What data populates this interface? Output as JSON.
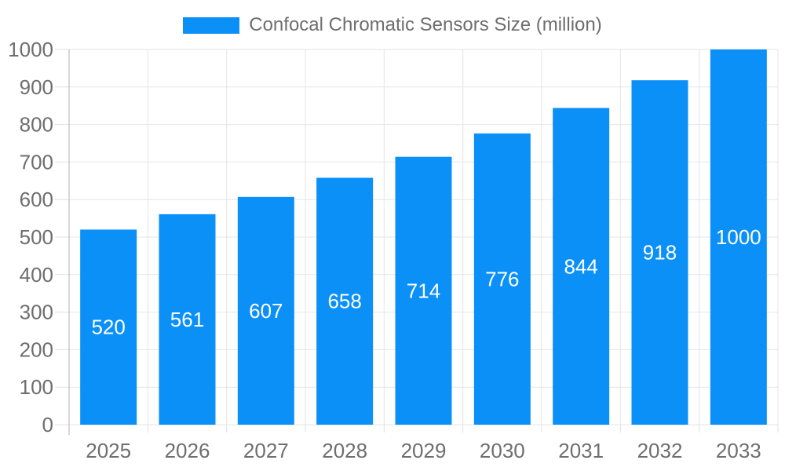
{
  "colors": {
    "bar": "#0b90f8",
    "text": "#6e6e6e",
    "grid": "#e5e5e5",
    "tick": "#e0e0e0",
    "axis_line": "#b0b0b0",
    "value_label": "#ffffff",
    "background": "#ffffff"
  },
  "chart_data": {
    "type": "bar",
    "title": "Confocal Chromatic Sensors Size (million)",
    "categories": [
      "2025",
      "2026",
      "2027",
      "2028",
      "2029",
      "2030",
      "2031",
      "2032",
      "2033"
    ],
    "values": [
      520,
      561,
      607,
      658,
      714,
      776,
      844,
      918,
      1000
    ],
    "xlabel": "",
    "ylabel": "",
    "ylim": [
      0,
      1000
    ],
    "ytick_step": 100,
    "yticks": [
      0,
      100,
      200,
      300,
      400,
      500,
      600,
      700,
      800,
      900,
      1000
    ],
    "grid": true,
    "legend_position": "top-center",
    "value_labels_position": "inside-center"
  }
}
